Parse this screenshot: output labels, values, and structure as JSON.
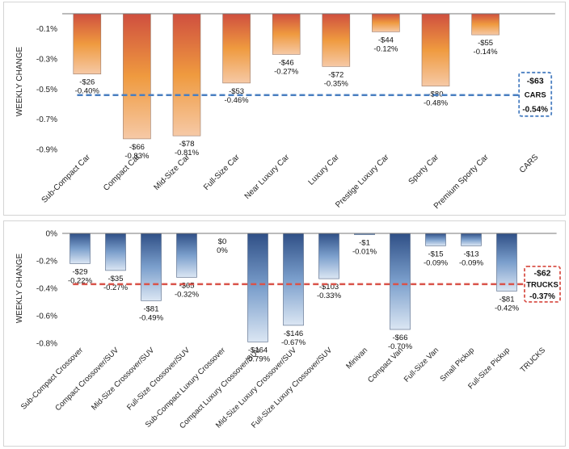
{
  "chart_data": [
    {
      "type": "bar",
      "ylabel": "WEEKLY CHANGE",
      "ylim": [
        -0.9,
        0.0
      ],
      "yticks": [
        -0.1,
        -0.3,
        -0.5,
        -0.7,
        -0.9
      ],
      "ytick_labels": [
        "-0.1%",
        "-0.3%",
        "-0.5%",
        "-0.7%",
        "-0.9%"
      ],
      "categories": [
        "Sub-Compact Car",
        "Compact Car",
        "Mid-Size Car",
        "Full-Size Car",
        "Near Luxury Car",
        "Luxury Car",
        "Prestige Luxury Car",
        "Sporty Car",
        "Premium Sporty Car",
        "CARS"
      ],
      "values": [
        -0.4,
        -0.83,
        -0.81,
        -0.46,
        -0.27,
        -0.35,
        -0.12,
        -0.48,
        -0.14,
        null
      ],
      "dollar_labels": [
        "-$26",
        "-$66",
        "-$78",
        "-$53",
        "-$46",
        "-$72",
        "-$44",
        "-$80",
        "-$55",
        ""
      ],
      "pct_labels": [
        "-0.40%",
        "-0.83%",
        "-0.81%",
        "-0.46%",
        "-0.27%",
        "-0.35%",
        "-0.12%",
        "-0.48%",
        "-0.14%",
        ""
      ],
      "average": {
        "value": -0.54,
        "dollar": "-$63",
        "name": "CARS",
        "pct": "-0.54%",
        "color": "#4a7fc1"
      },
      "colors": {
        "top": "#cf4f3f",
        "mid": "#ef9a3f",
        "bottom": "#f6c9a6",
        "edge": "#9a7a6a"
      }
    },
    {
      "type": "bar",
      "ylabel": "WEEKLY CHANGE",
      "ylim": [
        -0.8,
        0.0
      ],
      "yticks": [
        0.0,
        -0.2,
        -0.4,
        -0.6,
        -0.8
      ],
      "ytick_labels": [
        "0%",
        "-0.2%",
        "-0.4%",
        "-0.6%",
        "-0.8%"
      ],
      "categories": [
        "Sub-Compact Crossover",
        "Compact Crossover/SUV",
        "Mid-Size Crossover/SUV",
        "Full-Size Crossover/SUV",
        "Sub-Compact Luxury Crossover",
        "Compact Luxury Crossover/SUV",
        "Mid-Size Luxury Crossover/SUV",
        "Full-Size Luxury Crossover/SUV",
        "Minivan",
        "Compact Van",
        "Full-Size Van",
        "Small Pickup",
        "Full-Size Pickup",
        "TRUCKS"
      ],
      "values": [
        -0.22,
        -0.27,
        -0.49,
        -0.32,
        0.0,
        -0.79,
        -0.67,
        -0.33,
        -0.01,
        -0.7,
        -0.09,
        -0.09,
        -0.42,
        null
      ],
      "dollar_labels": [
        "-$29",
        "-$35",
        "-$81",
        "-$65",
        "$0",
        "-$164",
        "-$146",
        "-$103",
        "-$1",
        "-$66",
        "-$15",
        "-$13",
        "-$81",
        ""
      ],
      "pct_labels": [
        "-0.22%",
        "-0.27%",
        "-0.49%",
        "-0.32%",
        "0%",
        "-0.79%",
        "-0.67%",
        "-0.33%",
        "-0.01%",
        "-0.70%",
        "-0.09%",
        "-0.09%",
        "-0.42%",
        ""
      ],
      "average": {
        "value": -0.37,
        "dollar": "-$62",
        "name": "TRUCKS",
        "pct": "-0.37%",
        "color": "#d9534a"
      },
      "colors": {
        "top": "#2f4f86",
        "mid": "#7b9fcc",
        "bottom": "#dbe6f3",
        "edge": "#506484"
      }
    }
  ]
}
